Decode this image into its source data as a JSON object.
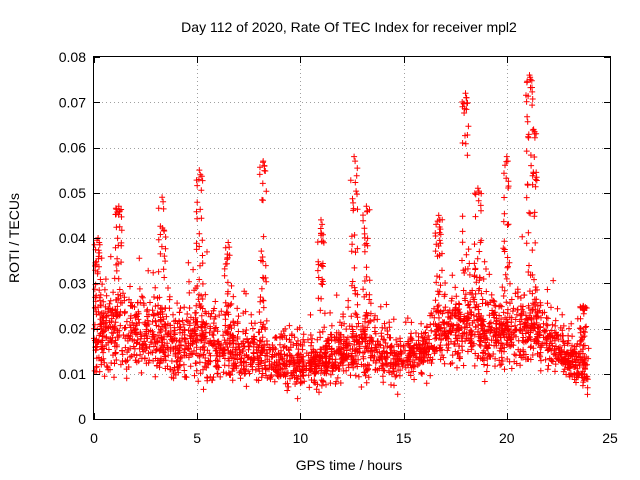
{
  "chart_data": {
    "type": "scatter",
    "title": "Day 112 of 2020, Rate Of TEC Index for receiver mpl2",
    "xlabel": "GPS time / hours",
    "ylabel": "ROTI / TECUs",
    "xlim": [
      0,
      25
    ],
    "ylim": [
      0,
      0.08
    ],
    "xticks": [
      "0",
      "5",
      "10",
      "15",
      "20",
      "25"
    ],
    "yticks": [
      "0",
      "0.01",
      "0.02",
      "0.03",
      "0.04",
      "0.05",
      "0.06",
      "0.07",
      "0.08"
    ],
    "grid": true,
    "marker": "plus",
    "color": "#ff0000",
    "density_profile": {
      "hours": [
        0,
        1,
        2,
        3,
        4,
        5,
        6,
        7,
        8,
        9,
        10,
        11,
        12,
        13,
        14,
        15,
        16,
        17,
        18,
        19,
        20,
        21,
        22,
        23,
        24
      ],
      "typical_roti": [
        0.018,
        0.02,
        0.019,
        0.018,
        0.016,
        0.017,
        0.016,
        0.015,
        0.014,
        0.013,
        0.012,
        0.012,
        0.015,
        0.016,
        0.014,
        0.013,
        0.016,
        0.02,
        0.021,
        0.019,
        0.018,
        0.02,
        0.017,
        0.013,
        0.011
      ],
      "spread": [
        0.006,
        0.007,
        0.007,
        0.007,
        0.006,
        0.007,
        0.006,
        0.005,
        0.005,
        0.004,
        0.004,
        0.004,
        0.005,
        0.005,
        0.005,
        0.004,
        0.005,
        0.006,
        0.007,
        0.007,
        0.006,
        0.006,
        0.005,
        0.004,
        0.004
      ]
    },
    "peaks": [
      {
        "x": 0.2,
        "y": 0.04
      },
      {
        "x": 1.2,
        "y": 0.047
      },
      {
        "x": 3.3,
        "y": 0.049
      },
      {
        "x": 5.1,
        "y": 0.055
      },
      {
        "x": 6.5,
        "y": 0.039
      },
      {
        "x": 8.2,
        "y": 0.057
      },
      {
        "x": 11.0,
        "y": 0.044
      },
      {
        "x": 12.6,
        "y": 0.058
      },
      {
        "x": 13.2,
        "y": 0.047
      },
      {
        "x": 16.7,
        "y": 0.045
      },
      {
        "x": 18.0,
        "y": 0.072
      },
      {
        "x": 18.6,
        "y": 0.051
      },
      {
        "x": 20.0,
        "y": 0.058
      },
      {
        "x": 21.1,
        "y": 0.076
      },
      {
        "x": 21.3,
        "y": 0.064
      },
      {
        "x": 23.7,
        "y": 0.025
      }
    ]
  }
}
